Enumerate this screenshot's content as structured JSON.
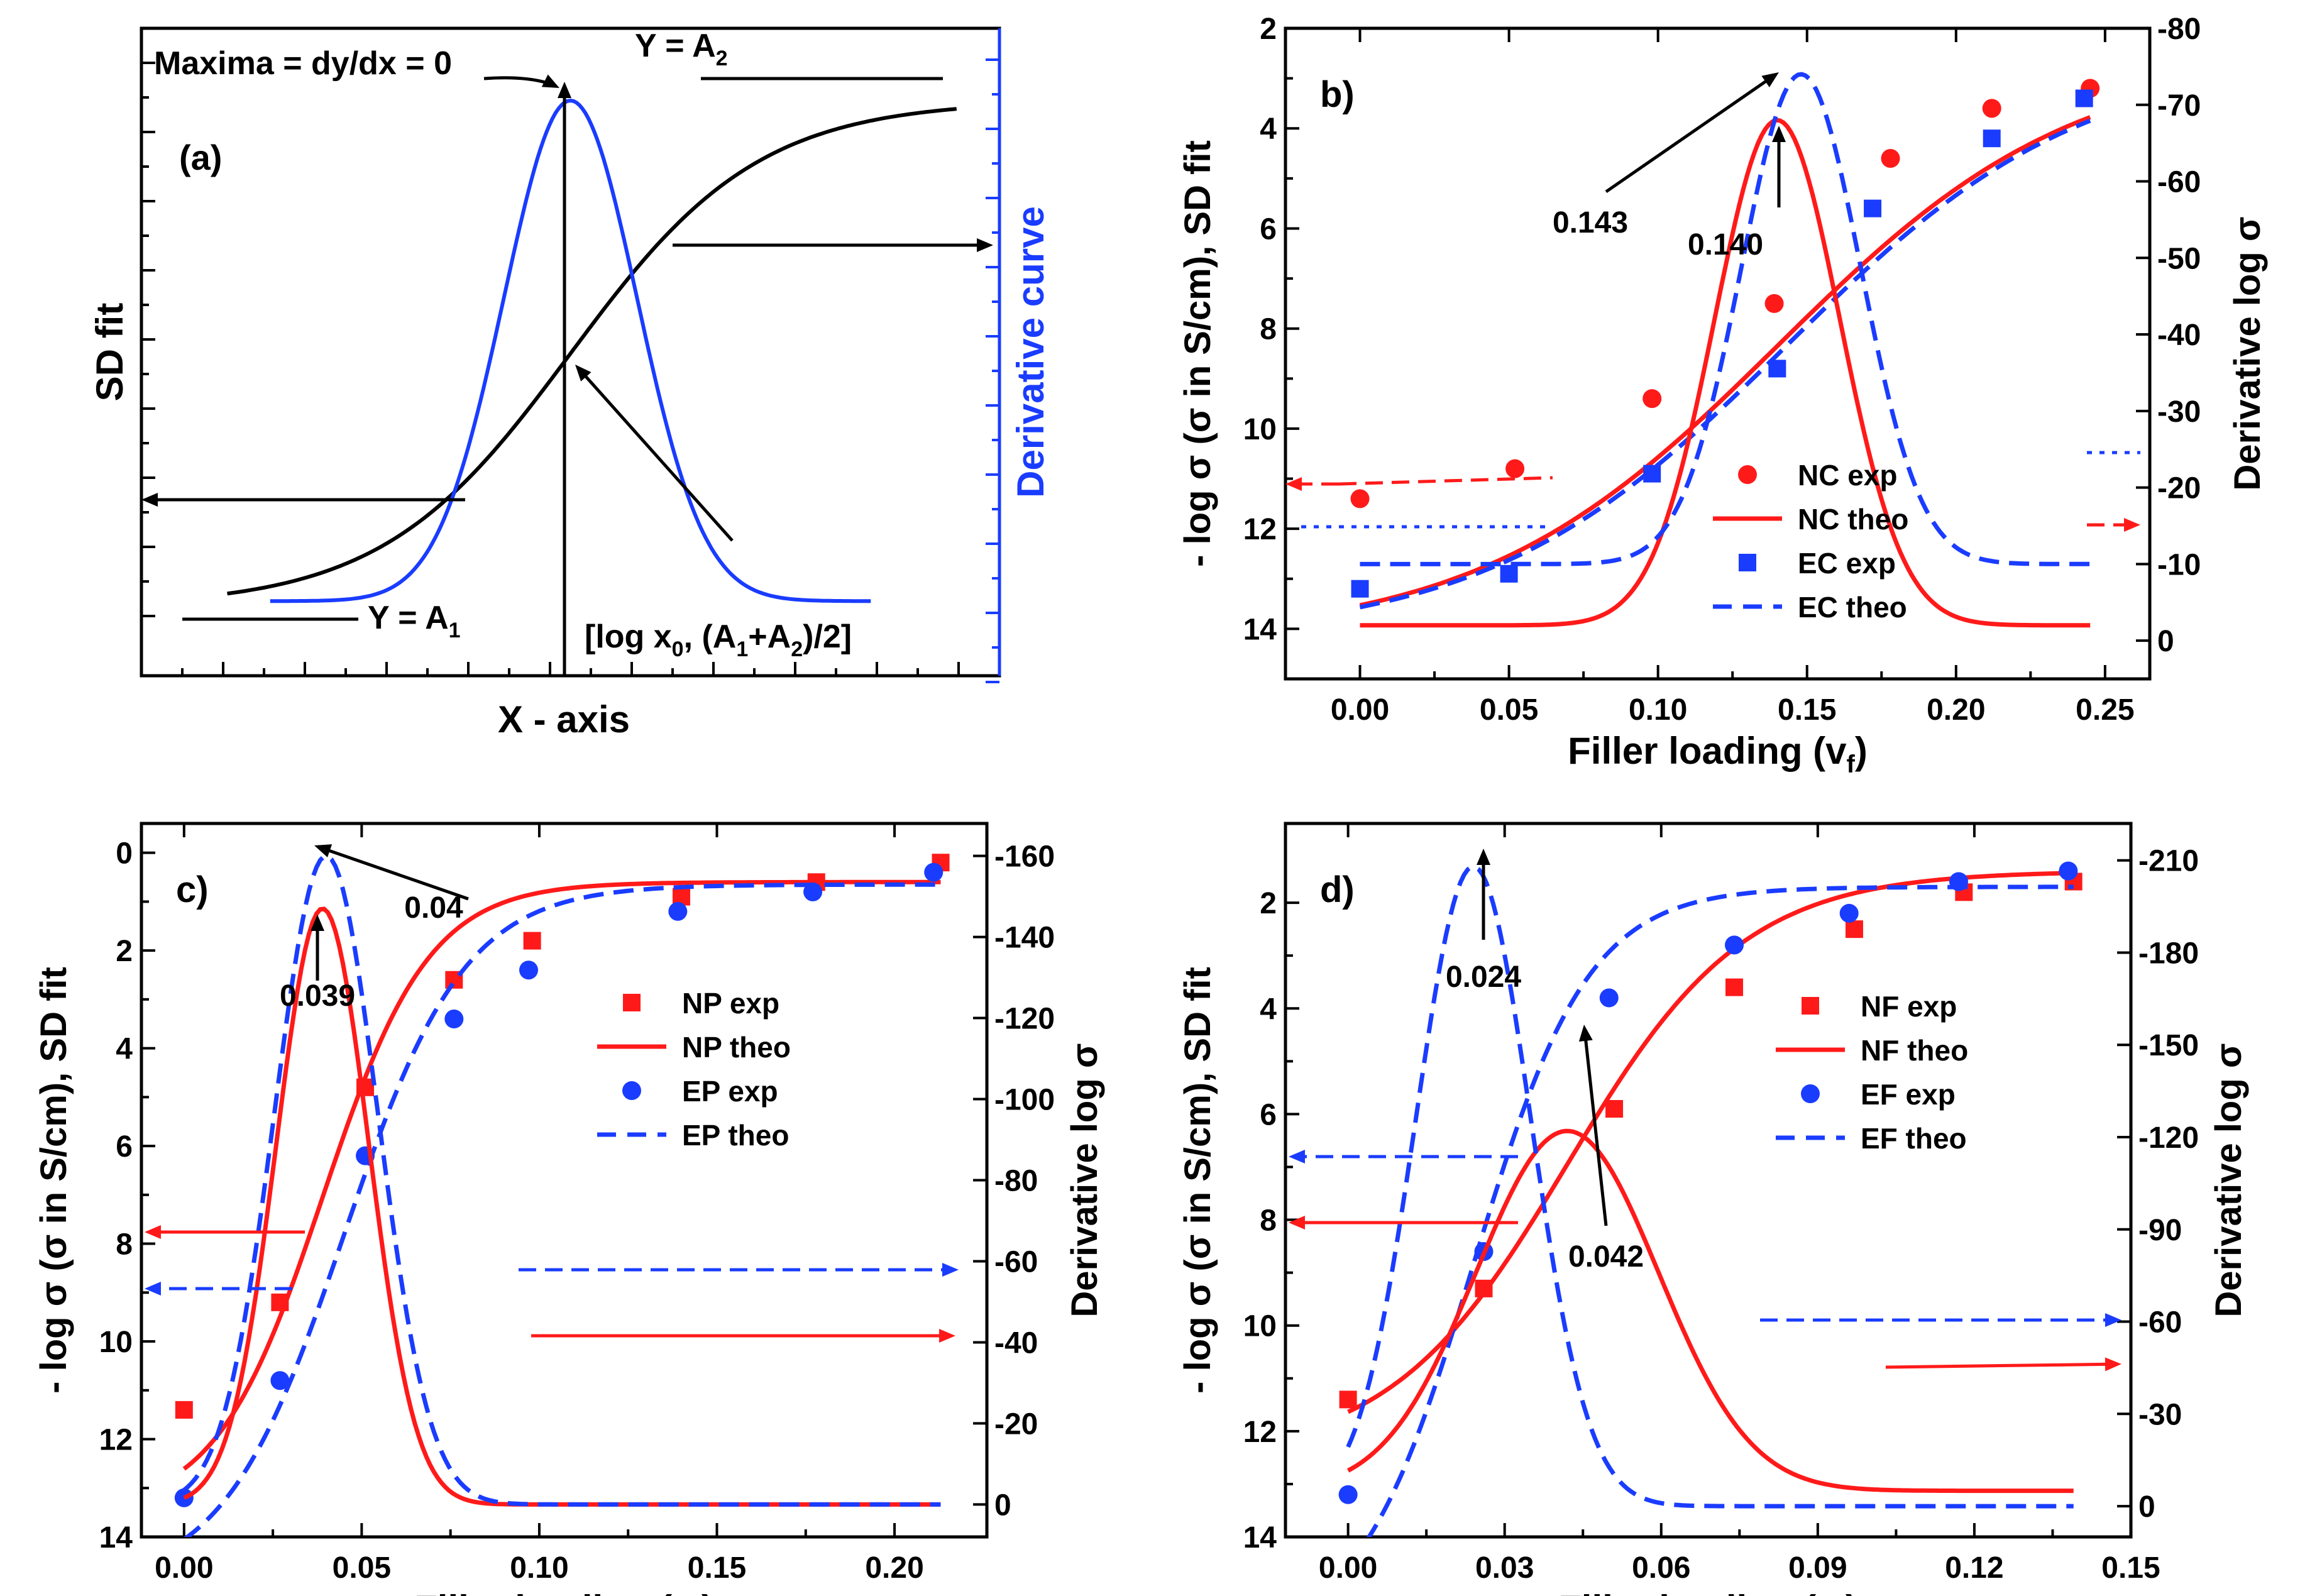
{
  "colors": {
    "black": "#000000",
    "red": "#ff1a1a",
    "blue": "#1a3cff"
  },
  "chart_data": [
    {
      "panel": "a",
      "type": "line",
      "panel_label": "(a)",
      "xlabel": "X - axis",
      "ylabel_left": "SD fit",
      "ylabel_right": "Derivative curve",
      "annotations": {
        "maxima": "Maxima = dy/dx = 0",
        "y_a2": "Y = A",
        "y_a2_sub": "2",
        "y_a1": "Y = A",
        "y_a1_sub": "1",
        "inflection_1": "[log x",
        "inflection_sub0": "0",
        "inflection_2": ", (A",
        "inflection_sub1": "1",
        "inflection_3": "+A",
        "inflection_sub2": "2",
        "inflection_4": ")/2]"
      },
      "x_range": [
        0,
        10
      ],
      "y_range": [
        0,
        1
      ],
      "series": [
        {
          "name": "SD fit",
          "color": "#000000",
          "kind": "sigmoid",
          "A1": 0.04,
          "A2": 0.96,
          "x0": 5,
          "dx": 1.1,
          "x_from": 1,
          "x_to": 9.5
        },
        {
          "name": "Derivative curve",
          "color": "#1a3cff",
          "kind": "gauss",
          "base": 0.05,
          "peak": 0.96,
          "xc": 5,
          "w": 1.55,
          "x_from": 1.5,
          "x_to": 8.5
        }
      ]
    },
    {
      "panel": "b",
      "type": "line+scatter",
      "panel_label": "b)",
      "xlabel": "Filler loading (v",
      "xlabel_sub": "f",
      "xlabel_end": ")",
      "ylabel_left": "- log σ (σ in S/cm), SD fit",
      "ylabel_right": "Derivative log σ",
      "x_range": [
        -0.025,
        0.265
      ],
      "x_ticks": [
        0.0,
        0.05,
        0.1,
        0.15,
        0.2,
        0.25
      ],
      "x_tick_labels": [
        "0.00",
        "0.05",
        "0.10",
        "0.15",
        "0.20",
        "0.25"
      ],
      "y_range": [
        2,
        15
      ],
      "y_ticks": [
        2,
        4,
        6,
        8,
        10,
        12,
        14
      ],
      "y2_range": [
        -80,
        5
      ],
      "y2_ticks": [
        0,
        -10,
        -20,
        -30,
        -40,
        -50,
        -60,
        -70,
        -80
      ],
      "y2_tick_labels": [
        "0",
        "-10",
        "-20",
        "-30",
        "-40",
        "-50",
        "-60",
        "-70",
        "-80"
      ],
      "annotations": [
        {
          "text": "0.143",
          "x": 0.143,
          "y": 3.0
        },
        {
          "text": "0.140",
          "x": 0.14,
          "y": 4.0
        }
      ],
      "legend": [
        "NC exp",
        "NC theo",
        "EC exp",
        "EC theo"
      ],
      "series": [
        {
          "name": "NC exp",
          "color": "#ff1a1a",
          "marker": "circle",
          "x": [
            0.0,
            0.052,
            0.098,
            0.139,
            0.178,
            0.212,
            0.245
          ],
          "y": [
            11.4,
            10.8,
            9.4,
            7.5,
            4.6,
            3.6,
            3.2
          ]
        },
        {
          "name": "NC theo",
          "color": "#ff1a1a",
          "dash": "solid",
          "kind": "sigmoid",
          "A1": 14.2,
          "A2": 2.5,
          "x0": 0.14,
          "dx": 0.05,
          "x_from": 0.0,
          "x_to": 0.245
        },
        {
          "name": "EC exp",
          "color": "#1a3cff",
          "marker": "square",
          "x": [
            0.0,
            0.05,
            0.098,
            0.14,
            0.172,
            0.212,
            0.243
          ],
          "y": [
            13.2,
            12.9,
            10.9,
            8.8,
            5.6,
            4.2,
            3.4
          ]
        },
        {
          "name": "EC theo",
          "color": "#1a3cff",
          "dash": "dashed",
          "kind": "sigmoid",
          "A1": 14.2,
          "A2": 2.5,
          "x0": 0.143,
          "dx": 0.05,
          "x_from": 0.0,
          "x_to": 0.245
        },
        {
          "name": "NC derivative",
          "color": "#ff1a1a",
          "dash": "solid",
          "axis": "right",
          "kind": "gauss",
          "base": -2,
          "peak": -68,
          "xc": 0.14,
          "w": 0.042,
          "x_from": 0.0,
          "x_to": 0.245
        },
        {
          "name": "EC derivative",
          "color": "#1a3cff",
          "dash": "dashed",
          "axis": "right",
          "kind": "gauss",
          "base": -10,
          "peak": -74,
          "xc": 0.148,
          "w": 0.04,
          "x_from": 0.0,
          "x_to": 0.245
        }
      ]
    },
    {
      "panel": "c",
      "type": "line+scatter",
      "panel_label": "c)",
      "xlabel": "Filler loading (v",
      "xlabel_sub": "f",
      "xlabel_end": ")",
      "ylabel_left": "- log σ (σ in S/cm), SD fit",
      "ylabel_right": "Derivative log σ",
      "x_range": [
        -0.012,
        0.226
      ],
      "x_ticks": [
        0.0,
        0.05,
        0.1,
        0.15,
        0.2
      ],
      "x_tick_labels": [
        "0.00",
        "0.05",
        "0.10",
        "0.15",
        "0.20"
      ],
      "y_range": [
        -0.6,
        14
      ],
      "y_ticks": [
        0,
        2,
        4,
        6,
        8,
        10,
        12,
        14
      ],
      "y2_range": [
        -168,
        8
      ],
      "y2_ticks": [
        0,
        -20,
        -40,
        -60,
        -80,
        -100,
        -120,
        -140,
        -160
      ],
      "y2_tick_labels": [
        "0",
        "-20",
        "-40",
        "-60",
        "-80",
        "-100",
        "-120",
        "-140",
        "-160"
      ],
      "annotations": [
        {
          "text": "0.04",
          "x": 0.04,
          "y": 0.0
        },
        {
          "text": "0.039",
          "x": 0.039,
          "y": 0.9
        }
      ],
      "legend": [
        "NP exp",
        "NP theo",
        "EP exp",
        "EP theo"
      ],
      "series": [
        {
          "name": "NP exp",
          "color": "#ff1a1a",
          "marker": "square",
          "x": [
            0.0,
            0.027,
            0.051,
            0.076,
            0.098,
            0.14,
            0.178,
            0.213
          ],
          "y": [
            11.4,
            9.2,
            4.8,
            2.6,
            1.8,
            0.9,
            0.6,
            0.2
          ]
        },
        {
          "name": "NP theo",
          "color": "#ff1a1a",
          "dash": "solid",
          "kind": "sigmoid",
          "A1": 13.5,
          "A2": 0.6,
          "x0": 0.039,
          "dx": 0.015,
          "x_from": 0.0,
          "x_to": 0.213
        },
        {
          "name": "EP exp",
          "color": "#1a3cff",
          "marker": "circle",
          "x": [
            0.0,
            0.027,
            0.051,
            0.076,
            0.097,
            0.139,
            0.177,
            0.211
          ],
          "y": [
            13.2,
            10.8,
            6.2,
            3.4,
            2.4,
            1.2,
            0.8,
            0.4
          ]
        },
        {
          "name": "EP theo",
          "color": "#1a3cff",
          "dash": "dashed",
          "kind": "sigmoid",
          "A1": 15.0,
          "A2": 0.65,
          "x0": 0.045,
          "dx": 0.017,
          "x_from": 0.0,
          "x_to": 0.213
        },
        {
          "name": "NP derivative",
          "color": "#ff1a1a",
          "dash": "solid",
          "axis": "right",
          "kind": "gauss",
          "base": 0,
          "peak": -147,
          "xc": 0.039,
          "w": 0.026,
          "x_from": 0.0,
          "x_to": 0.213
        },
        {
          "name": "EP derivative",
          "color": "#1a3cff",
          "dash": "dashed",
          "axis": "right",
          "kind": "gauss",
          "base": 0,
          "peak": -160,
          "xc": 0.04,
          "w": 0.029,
          "x_from": 0.0,
          "x_to": 0.213
        }
      ]
    },
    {
      "panel": "d",
      "type": "line+scatter",
      "panel_label": "d)",
      "xlabel": "Filler loading (v",
      "xlabel_sub": "f",
      "xlabel_end": ")",
      "ylabel_left": "- log σ (σ in S/cm), SD fit",
      "ylabel_right": "Derivative log σ",
      "x_range": [
        -0.012,
        0.15
      ],
      "x_ticks": [
        0.0,
        0.03,
        0.06,
        0.09,
        0.12,
        0.15
      ],
      "x_tick_labels": [
        "0.00",
        "0.03",
        "0.06",
        "0.09",
        "0.12",
        "0.15"
      ],
      "y_range": [
        0.5,
        14
      ],
      "y_ticks": [
        2,
        4,
        6,
        8,
        10,
        12,
        14
      ],
      "y2_range": [
        -222,
        10
      ],
      "y2_ticks": [
        0,
        -30,
        -60,
        -90,
        -120,
        -150,
        -180,
        -210
      ],
      "y2_tick_labels": [
        "0",
        "-30",
        "-60",
        "-90",
        "-120",
        "-150",
        "-180",
        "-210"
      ],
      "annotations": [
        {
          "text": "0.024",
          "x": 0.024,
          "y": 1.3
        },
        {
          "text": "0.042",
          "x": 0.042,
          "y": 5.8
        }
      ],
      "legend": [
        "NF exp",
        "NF theo",
        "EF exp",
        "EF theo"
      ],
      "series": [
        {
          "name": "NF exp",
          "color": "#ff1a1a",
          "marker": "square",
          "x": [
            0.0,
            0.026,
            0.051,
            0.074,
            0.097,
            0.118,
            0.139
          ],
          "y": [
            11.4,
            9.3,
            5.9,
            3.6,
            2.5,
            1.8,
            1.6
          ]
        },
        {
          "name": "NF theo",
          "color": "#ff1a1a",
          "dash": "solid",
          "kind": "sigmoid",
          "A1": 12.5,
          "A2": 1.4,
          "x0": 0.042,
          "dx": 0.017,
          "x_from": 0.0,
          "x_to": 0.139
        },
        {
          "name": "EF exp",
          "color": "#1a3cff",
          "marker": "circle",
          "x": [
            0.0,
            0.026,
            0.05,
            0.074,
            0.096,
            0.117,
            0.138
          ],
          "y": [
            13.2,
            8.6,
            3.8,
            2.8,
            2.2,
            1.6,
            1.4
          ]
        },
        {
          "name": "EF theo",
          "color": "#1a3cff",
          "dash": "dashed",
          "kind": "sigmoid",
          "A1": 16.0,
          "A2": 1.7,
          "x0": 0.024,
          "dx": 0.011,
          "x_from": 0.0,
          "x_to": 0.139
        },
        {
          "name": "NF derivative",
          "color": "#ff1a1a",
          "dash": "solid",
          "axis": "right",
          "kind": "gauss",
          "base": -5,
          "peak": -122,
          "xc": 0.042,
          "w": 0.035,
          "x_from": 0.0,
          "x_to": 0.139
        },
        {
          "name": "EF derivative",
          "color": "#1a3cff",
          "dash": "dashed",
          "axis": "right",
          "kind": "gauss",
          "base": 0,
          "peak": -208,
          "xc": 0.024,
          "w": 0.022,
          "x_from": 0.0,
          "x_to": 0.139
        }
      ]
    }
  ]
}
